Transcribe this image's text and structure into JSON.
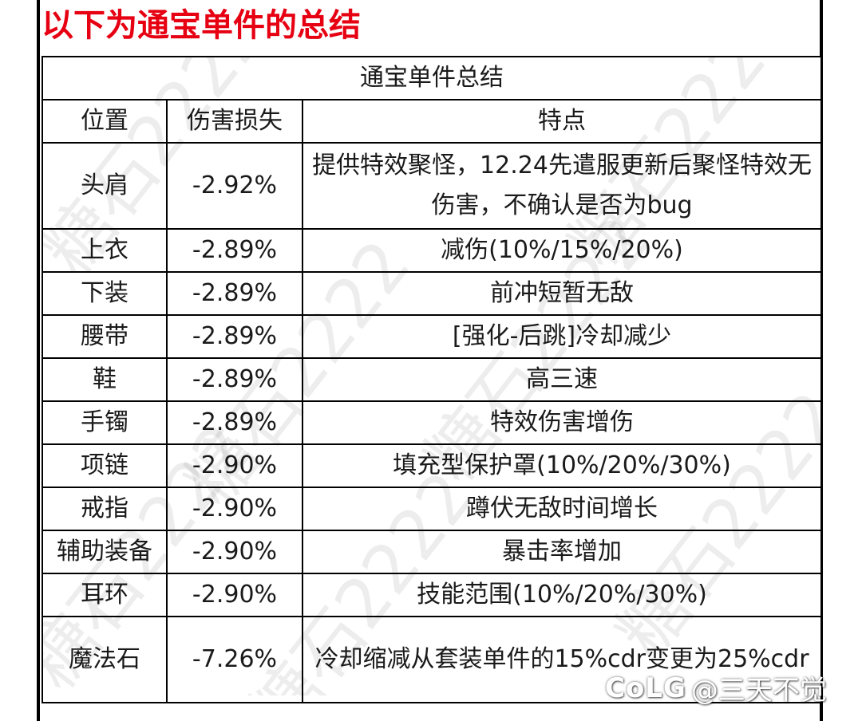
{
  "heading": "以下为通宝单件的总结",
  "table": {
    "title": "通宝单件总结",
    "headers": [
      "位置",
      "伤害损失",
      "特点"
    ],
    "rows": [
      {
        "position": "头肩",
        "damage_loss": "-2.92%",
        "feature": "提供特效聚怪，12.24先遣服更新后聚怪特效无伤害，不确认是否为bug"
      },
      {
        "position": "上衣",
        "damage_loss": "-2.89%",
        "feature": "减伤(10%/15%/20%)"
      },
      {
        "position": "下装",
        "damage_loss": "-2.89%",
        "feature": "前冲短暂无敌"
      },
      {
        "position": "腰带",
        "damage_loss": "-2.89%",
        "feature": "[强化-后跳]冷却减少"
      },
      {
        "position": "鞋",
        "damage_loss": "-2.89%",
        "feature": "高三速"
      },
      {
        "position": "手镯",
        "damage_loss": "-2.89%",
        "feature": "特效伤害增伤"
      },
      {
        "position": "项链",
        "damage_loss": "-2.90%",
        "feature": "填充型保护罩(10%/20%/30%)"
      },
      {
        "position": "戒指",
        "damage_loss": "-2.90%",
        "feature": "蹲伏无敌时间增长"
      },
      {
        "position": "辅助装备",
        "damage_loss": "-2.90%",
        "feature": "暴击率增加"
      },
      {
        "position": "耳环",
        "damage_loss": "-2.90%",
        "feature": "技能范围(10%/20%/30%)"
      },
      {
        "position": "魔法石",
        "damage_loss": "-7.26%",
        "feature": "冷却缩减从套装单件的15%cdr变更为25%cdr"
      }
    ]
  },
  "watermark_text": "糖石2222",
  "credit": {
    "logo": "CoLG",
    "handle": "@三天不觉"
  },
  "colors": {
    "heading": "#e60012",
    "border": "#000000",
    "text": "#1a1a1a"
  }
}
